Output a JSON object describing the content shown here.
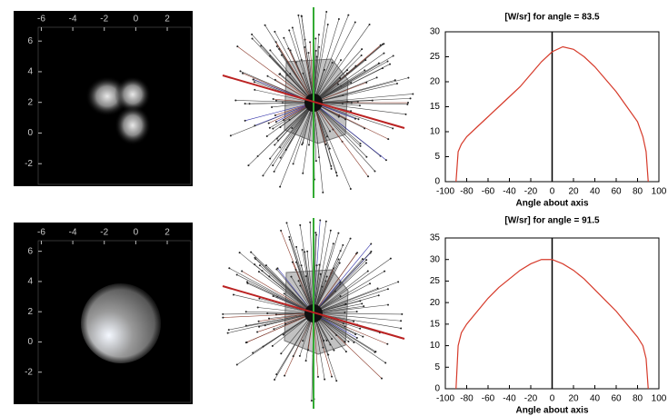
{
  "chart_data": [
    {
      "type": "image",
      "xlim": [
        -6.2,
        3.5
      ],
      "xticks": [
        -6,
        -4,
        -2,
        0,
        2
      ],
      "ylim": [
        -3.35,
        6.9
      ],
      "yticks": [
        6,
        4,
        2,
        0,
        -2
      ]
    },
    {
      "type": "line",
      "title": "[W/sr] for angle = 83.5",
      "x_label": "Angle about axis",
      "xlim": [
        -100,
        100
      ],
      "xticks": [
        -100,
        -80,
        -60,
        -40,
        -20,
        0,
        20,
        40,
        60,
        80,
        100
      ],
      "ylim": [
        0,
        30
      ],
      "yticks": [
        0,
        5,
        10,
        15,
        20,
        25,
        30
      ],
      "color": "#d63a2a",
      "x": [
        -90,
        -88,
        -85,
        -80,
        -70,
        -60,
        -50,
        -40,
        -30,
        -20,
        -10,
        0,
        10,
        20,
        30,
        40,
        50,
        60,
        70,
        80,
        85,
        88,
        90
      ],
      "values": [
        0,
        6,
        7.5,
        9,
        11,
        13,
        15,
        17,
        19,
        21.5,
        24,
        26,
        27,
        26.5,
        25,
        23,
        20.5,
        18,
        15,
        12,
        9,
        6,
        0
      ]
    },
    {
      "type": "image",
      "xlim": [
        -6.2,
        3.5
      ],
      "xticks": [
        -6,
        -4,
        -2,
        0,
        2
      ],
      "ylim": [
        -4,
        6.7
      ],
      "yticks": [
        6,
        4,
        2,
        0,
        -2
      ]
    },
    {
      "type": "line",
      "title": "[W/sr] for angle = 91.5",
      "x_label": "Angle about axis",
      "xlim": [
        -100,
        100
      ],
      "xticks": [
        -100,
        -80,
        -60,
        -40,
        -20,
        0,
        20,
        40,
        60,
        80,
        100
      ],
      "ylim": [
        0,
        35
      ],
      "yticks": [
        0,
        5,
        10,
        15,
        20,
        25,
        30,
        35
      ],
      "color": "#d63a2a",
      "x": [
        -90,
        -88,
        -85,
        -80,
        -70,
        -60,
        -50,
        -40,
        -30,
        -20,
        -10,
        0,
        10,
        20,
        30,
        40,
        50,
        60,
        70,
        80,
        85,
        88,
        90
      ],
      "values": [
        0,
        10,
        13,
        15,
        18,
        21,
        23.5,
        25.5,
        27.5,
        29,
        30,
        30,
        29,
        27.5,
        25.5,
        23,
        20.5,
        18,
        15,
        12,
        10,
        7,
        0
      ]
    }
  ]
}
